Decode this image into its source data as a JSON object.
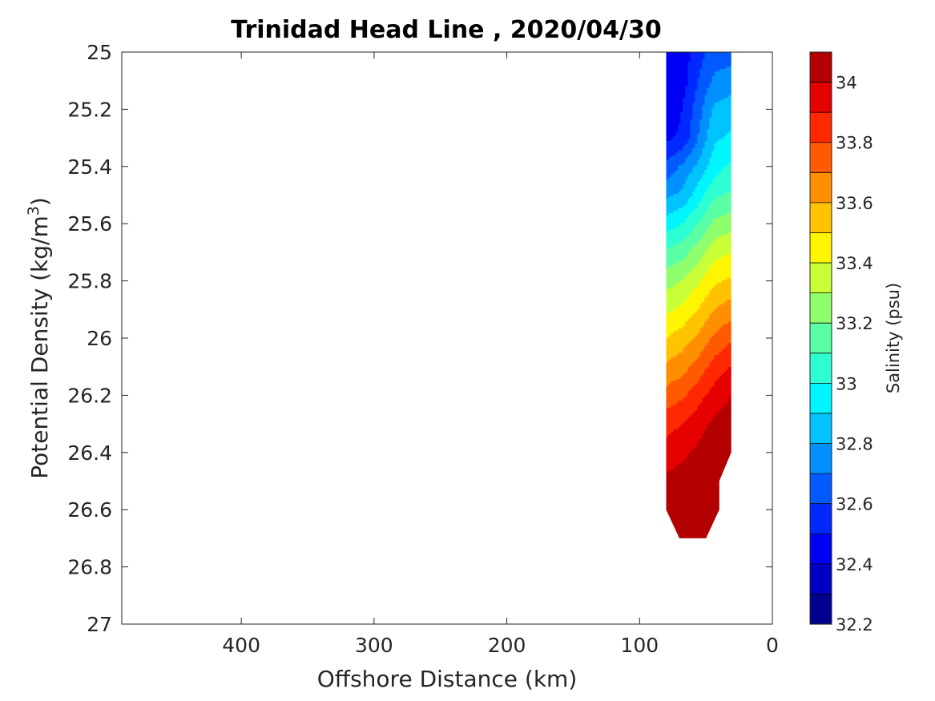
{
  "chart_data": {
    "type": "heatmap",
    "subtype": "filled-contour",
    "title": "Trinidad Head Line , 2020/04/30",
    "xlabel": "Offshore Distance (km)",
    "ylabel": "Potential Density (kg/m^3)",
    "ylabel_base": "Potential Density (kg/m",
    "ylabel_sup": "3",
    "ylabel_close": ")",
    "xlim": [
      490,
      0
    ],
    "x_reversed": true,
    "ylim": [
      25,
      27
    ],
    "y_reversed": true,
    "x_ticks": [
      "400",
      "300",
      "200",
      "100",
      "0"
    ],
    "x_tick_values": [
      400,
      300,
      200,
      100,
      0
    ],
    "y_ticks": [
      "25",
      "25.2",
      "25.4",
      "25.6",
      "25.8",
      "26",
      "26.2",
      "26.4",
      "26.6",
      "26.8",
      "27"
    ],
    "y_tick_values": [
      25,
      25.2,
      25.4,
      25.6,
      25.8,
      26.0,
      26.2,
      26.4,
      26.6,
      26.8,
      27.0
    ],
    "grid": false,
    "colorbar": {
      "label": "Salinity (psu)",
      "range": [
        32.2,
        34.1
      ],
      "step": 0.1,
      "tick_labels": [
        "32.2",
        "32.4",
        "32.6",
        "32.8",
        "33",
        "33.2",
        "33.4",
        "33.6",
        "33.8",
        "34"
      ],
      "tick_values": [
        32.2,
        32.4,
        32.6,
        32.8,
        33.0,
        33.2,
        33.4,
        33.6,
        33.8,
        34.0
      ],
      "colors": [
        "#00008f",
        "#0000c4",
        "#0000f5",
        "#0028ff",
        "#005aff",
        "#0090ff",
        "#00c3ff",
        "#00f5ff",
        "#2dffd2",
        "#5affa5",
        "#90ff6e",
        "#c8ff37",
        "#fff500",
        "#ffc300",
        "#ff8f00",
        "#ff5a00",
        "#ff2800",
        "#e60000",
        "#b30000"
      ]
    },
    "salinity_grid": {
      "x_km": [
        80,
        68,
        56,
        44,
        31
      ],
      "density": [
        25.0,
        25.1,
        25.2,
        25.3,
        25.4,
        25.5,
        25.6,
        25.7,
        25.8,
        25.9,
        26.0,
        26.1,
        26.2,
        26.3,
        26.4,
        26.5,
        26.6,
        26.7
      ],
      "values": [
        [
          32.4,
          32.45,
          32.55,
          32.65,
          32.65
        ],
        [
          32.4,
          32.45,
          32.6,
          32.72,
          32.75
        ],
        [
          32.42,
          32.5,
          32.65,
          32.82,
          32.85
        ],
        [
          32.48,
          32.52,
          32.7,
          32.88,
          32.92
        ],
        [
          32.62,
          32.72,
          32.82,
          32.95,
          33.02
        ],
        [
          32.78,
          32.82,
          32.95,
          33.08,
          33.12
        ],
        [
          32.95,
          33.0,
          33.1,
          33.22,
          33.26
        ],
        [
          33.12,
          33.16,
          33.25,
          33.36,
          33.4
        ],
        [
          33.26,
          33.3,
          33.38,
          33.48,
          33.52
        ],
        [
          33.38,
          33.42,
          33.5,
          33.6,
          33.65
        ],
        [
          33.5,
          33.55,
          33.62,
          33.72,
          33.78
        ],
        [
          33.62,
          33.66,
          33.74,
          33.84,
          33.9
        ],
        [
          33.74,
          33.78,
          33.86,
          33.94,
          34.0
        ],
        [
          33.86,
          33.9,
          33.96,
          34.02,
          34.05
        ],
        [
          33.95,
          33.98,
          34.02,
          34.05,
          34.06
        ],
        [
          34.02,
          34.04,
          34.05,
          34.08,
          34.0
        ],
        [
          34.05,
          34.06,
          34.07,
          34.12,
          34.0
        ],
        [
          34.05,
          34.05,
          34.05,
          34.0,
          34.0
        ]
      ],
      "data_outline": [
        [
          80,
          25.0
        ],
        [
          31,
          25.0
        ],
        [
          31,
          26.4
        ],
        [
          40,
          26.5
        ],
        [
          40,
          26.6
        ],
        [
          50,
          26.7
        ],
        [
          70,
          26.7
        ],
        [
          80,
          26.6
        ]
      ]
    }
  }
}
